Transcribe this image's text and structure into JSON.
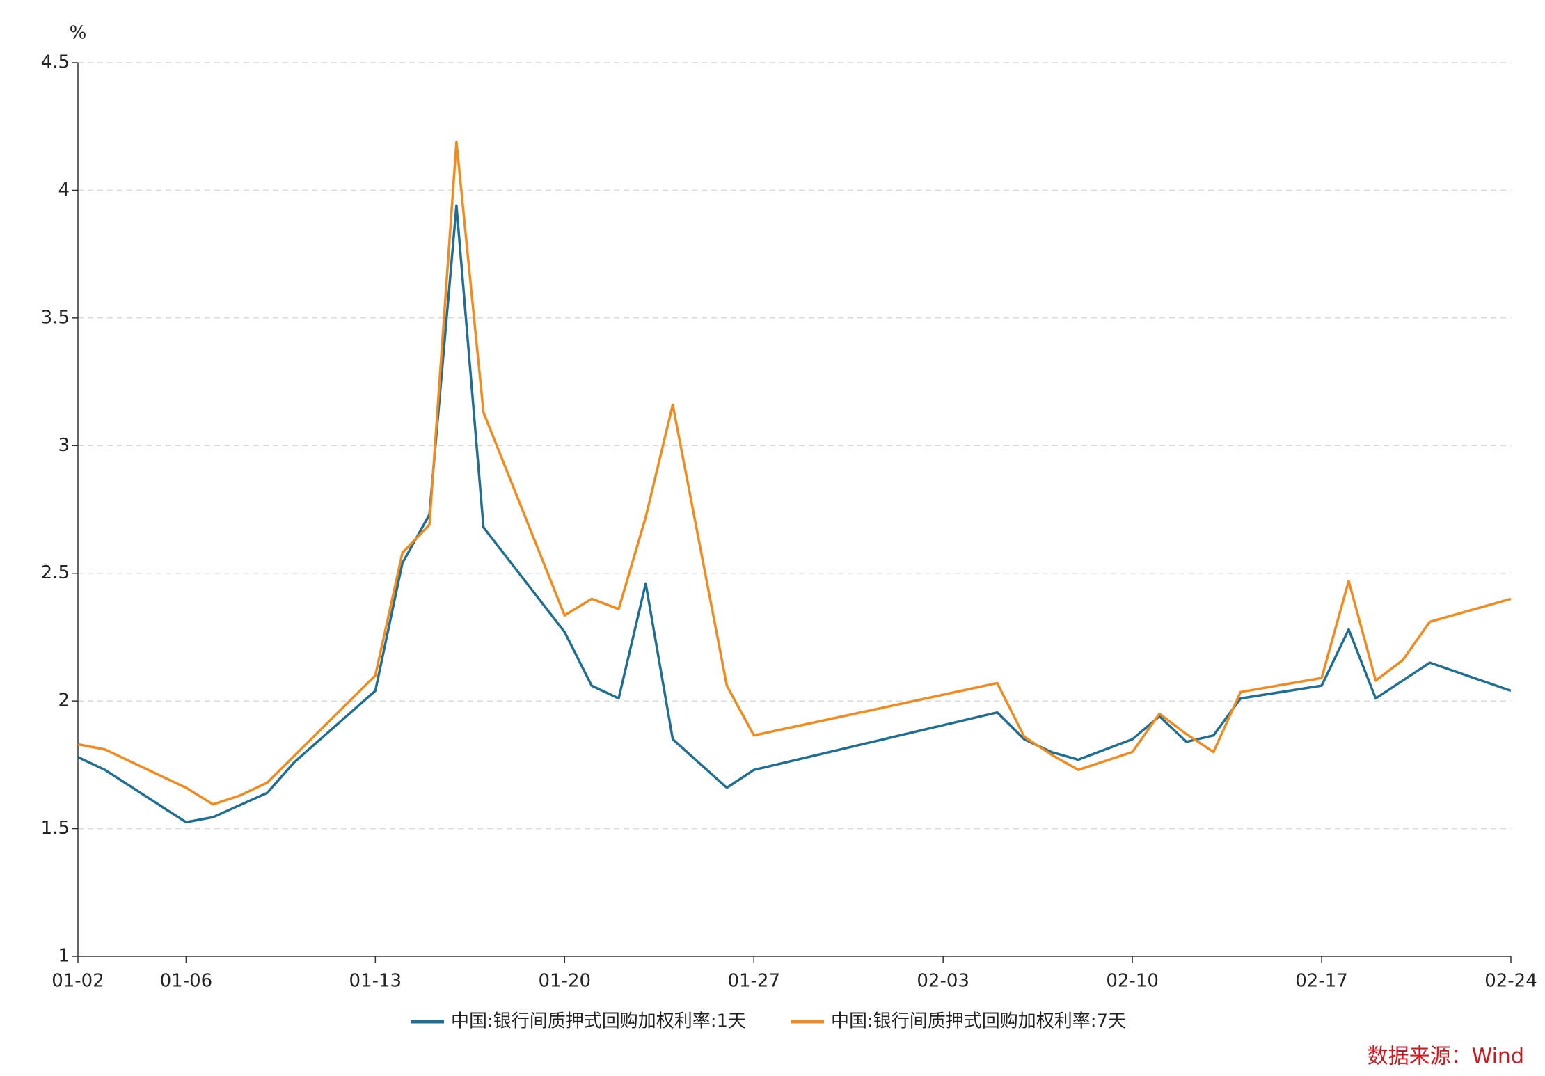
{
  "chart_data": {
    "type": "line",
    "y_unit": "%",
    "xlim": [
      "01-02",
      "02-24"
    ],
    "xticks": [
      "01-02",
      "01-06",
      "01-13",
      "01-20",
      "01-27",
      "02-03",
      "02-10",
      "02-17",
      "02-24"
    ],
    "ylim": [
      1,
      4.5
    ],
    "yticks": [
      1,
      1.5,
      2,
      2.5,
      3,
      3.5,
      4,
      4.5
    ],
    "grid": true,
    "series": [
      {
        "name": "中国:银行间质押式回购加权利率:1天",
        "color": "#1f6e94",
        "x": [
          "01-02",
          "01-03",
          "01-06",
          "01-07",
          "01-09",
          "01-10",
          "01-13",
          "01-14",
          "01-15",
          "01-16",
          "01-17",
          "01-20",
          "01-21",
          "01-22",
          "01-23",
          "01-24",
          "01-26",
          "01-27",
          "02-05",
          "02-06",
          "02-07",
          "02-08",
          "02-10",
          "02-11",
          "02-12",
          "02-13",
          "02-14",
          "02-17",
          "02-18",
          "02-19",
          "02-21",
          "02-24"
        ],
        "values": [
          1.78,
          1.73,
          1.525,
          1.545,
          1.64,
          1.76,
          2.04,
          2.54,
          2.73,
          3.94,
          2.68,
          2.27,
          2.06,
          2.01,
          2.46,
          1.85,
          1.66,
          1.73,
          1.955,
          1.85,
          1.8,
          1.77,
          1.85,
          1.94,
          1.84,
          1.865,
          2.01,
          2.06,
          2.28,
          2.01,
          2.15,
          2.04
        ]
      },
      {
        "name": "中国:银行间质押式回购加权利率:7天",
        "color": "#f28a1e",
        "x": [
          "01-02",
          "01-03",
          "01-06",
          "01-07",
          "01-08",
          "01-09",
          "01-13",
          "01-14",
          "01-15",
          "01-16",
          "01-17",
          "01-20",
          "01-21",
          "01-22",
          "01-23",
          "01-24",
          "01-26",
          "01-27",
          "02-05",
          "02-06",
          "02-07",
          "02-08",
          "02-10",
          "02-11",
          "02-12",
          "02-13",
          "02-14",
          "02-17",
          "02-18",
          "02-19",
          "02-20",
          "02-21",
          "02-24"
        ],
        "values": [
          1.83,
          1.81,
          1.66,
          1.595,
          1.63,
          1.68,
          2.1,
          2.58,
          2.69,
          4.19,
          3.13,
          2.335,
          2.4,
          2.36,
          2.72,
          3.16,
          2.06,
          1.865,
          2.07,
          1.86,
          1.79,
          1.73,
          1.8,
          1.95,
          1.87,
          1.8,
          2.035,
          2.09,
          2.47,
          2.08,
          2.16,
          2.31,
          2.4
        ]
      }
    ],
    "source": "数据来源：Wind"
  }
}
